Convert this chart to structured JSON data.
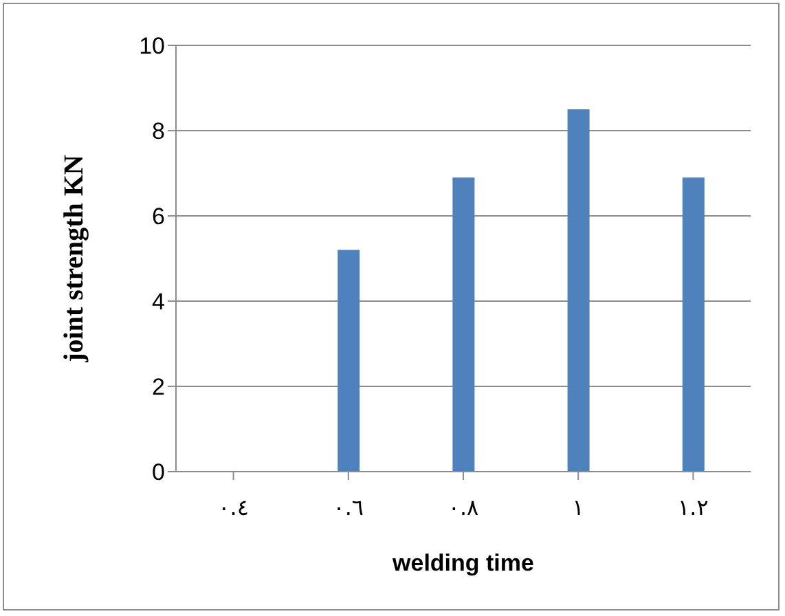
{
  "chart_data": {
    "type": "bar",
    "xlabel": "welding time",
    "ylabel": "joint strength KN",
    "categories": [
      "٠.٤",
      "٠.٦",
      "٠.٨",
      "١",
      "١.٢"
    ],
    "values": [
      null,
      5.2,
      6.9,
      8.5,
      6.9
    ],
    "color": "#4f81bd",
    "ylim": [
      0,
      10
    ],
    "yticks": [
      0,
      2,
      4,
      6,
      8,
      10
    ],
    "grid": "y",
    "legend": false
  }
}
